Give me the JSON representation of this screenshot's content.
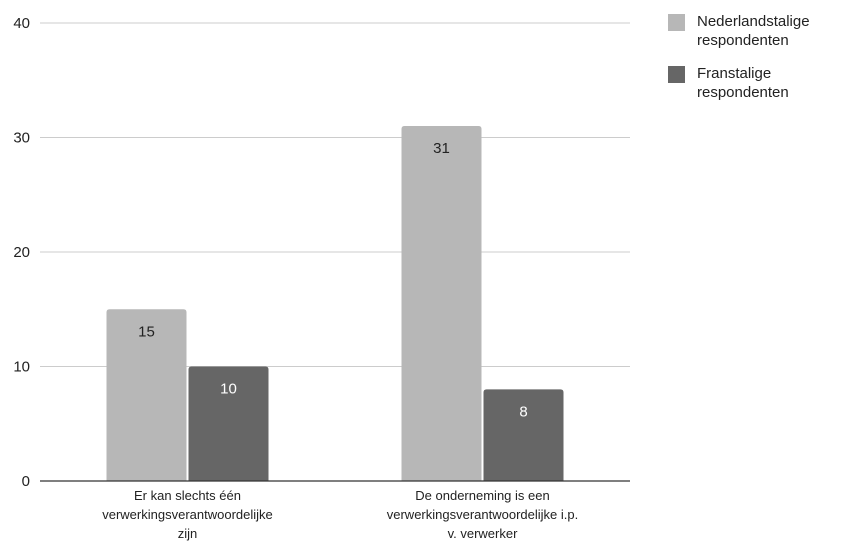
{
  "chart_data": {
    "type": "bar",
    "title": "",
    "xlabel": "",
    "ylabel": "",
    "ylim": [
      0,
      40
    ],
    "yticks": [
      0,
      10,
      20,
      30,
      40
    ],
    "grid": true,
    "legend_position": "right",
    "categories": [
      [
        "Er kan slechts één",
        "verwerkingsverantwoordelijke",
        "zijn"
      ],
      [
        "De onderneming is een",
        "verwerkingsverantwoordelijke i.p.",
        "v. verwerker"
      ]
    ],
    "series": [
      {
        "name": "Nederlandstalige respondenten",
        "legend_lines": [
          "Nederlandstalige",
          "respondenten"
        ],
        "values": [
          15,
          31
        ],
        "color": "#b7b7b7",
        "label_color": "#222222"
      },
      {
        "name": "Franstalige respondenten",
        "legend_lines": [
          "Franstalige",
          "respondenten"
        ],
        "values": [
          10,
          8
        ],
        "color": "#666666",
        "label_color": "#ffffff"
      }
    ]
  }
}
